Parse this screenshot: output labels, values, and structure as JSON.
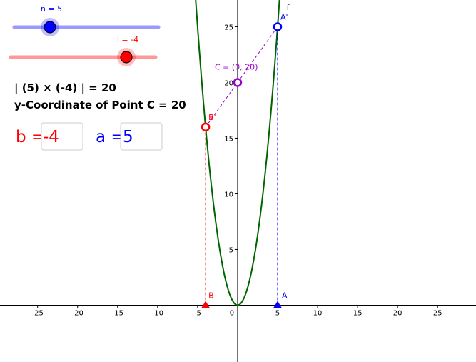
{
  "sliders": [
    {
      "label": "n = 5",
      "color": "#0000ff",
      "track": "#9999ff"
    },
    {
      "label": "i = -4",
      "color": "#ff0000",
      "track": "#ff9999"
    }
  ],
  "texts": [
    "| (5) × (-4) | = 20",
    "y-Coordinate of Point C = 20"
  ],
  "inputs": [
    {
      "label": "b =",
      "value": "-4",
      "color": "#ff0000"
    },
    {
      "label": "a =",
      "value": "5",
      "color": "#0000ff"
    }
  ],
  "graph": {
    "xlim": [
      -29.7,
      29.8
    ],
    "ylim": [
      -5.1,
      27.4
    ],
    "xticks": [
      -25,
      -20,
      -15,
      -10,
      -5,
      0,
      5,
      10,
      15,
      20,
      25
    ],
    "yticks": [
      5,
      10,
      15,
      20,
      25
    ],
    "function": {
      "label": "f",
      "color": "#006400"
    },
    "points": [
      {
        "label": "A",
        "x": 5,
        "y": 0,
        "color": "#0000ff",
        "shape": "triangle"
      },
      {
        "label": "B",
        "x": -4,
        "y": 0,
        "color": "#ff0000",
        "shape": "triangle"
      },
      {
        "label": "A'",
        "x": 5,
        "y": 25,
        "color": "#0000ff",
        "shape": "circle"
      },
      {
        "label": "B'",
        "x": -4,
        "y": 16,
        "color": "#ff0000",
        "shape": "circle"
      },
      {
        "label": "C = (0, 20)",
        "x": 0,
        "y": 20,
        "color": "#9900cc",
        "shape": "circle"
      }
    ]
  }
}
